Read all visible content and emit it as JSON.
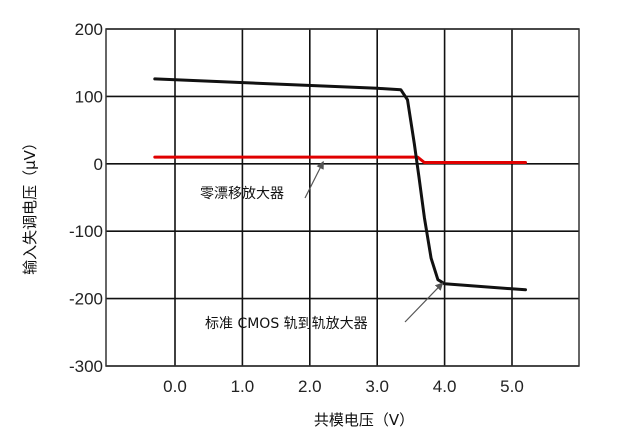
{
  "chart_data": {
    "type": "line",
    "title": "",
    "xlabel": "共模电压（V）",
    "ylabel": "输入失调电压（µV）",
    "xlim": [
      -0.5,
      5.5
    ],
    "ylim": [
      -300,
      200
    ],
    "x_ticks": [
      0.0,
      1.0,
      2.0,
      3.0,
      4.0,
      5.0
    ],
    "x_tick_labels": [
      "0.0",
      "1.0",
      "2.0",
      "3.0",
      "4.0",
      "5.0"
    ],
    "y_ticks": [
      200,
      100,
      0,
      -100,
      -200,
      -300
    ],
    "y_tick_labels": [
      "200",
      "100",
      "0",
      "-100",
      "-200",
      "-300"
    ],
    "grid": true,
    "series": [
      {
        "color": "#e00000",
        "x": [
          -0.3,
          3.6,
          3.7,
          5.2
        ],
        "y": [
          10,
          10,
          2,
          2
        ]
      },
      {
        "color": "#111111",
        "x": [
          -0.3,
          3.0,
          3.35,
          3.45,
          3.55,
          3.62,
          3.7,
          3.8,
          3.9,
          4.0,
          5.2
        ],
        "y": [
          126,
          112,
          110,
          95,
          30,
          -20,
          -80,
          -140,
          -172,
          -178,
          -187
        ]
      }
    ],
    "annotations": [
      {
        "text": "零漂移放大器",
        "target": {
          "x": 2.2,
          "y": 3
        }
      },
      {
        "text": "标准 CMOS 轨到轨放大器",
        "target": {
          "x": 3.97,
          "y": -177
        }
      }
    ]
  }
}
